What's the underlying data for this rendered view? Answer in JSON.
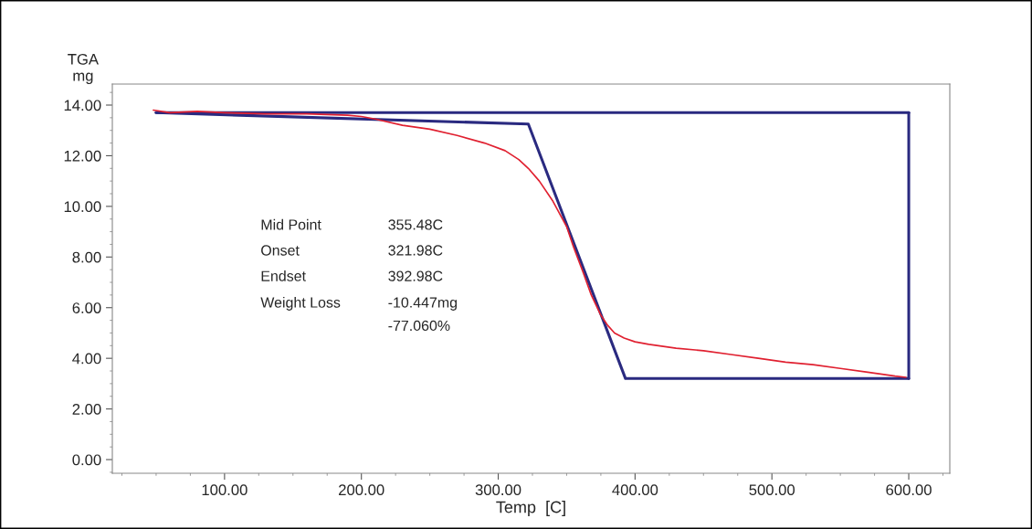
{
  "chart_data": {
    "type": "line",
    "xlabel": "Temp  [C]",
    "ylabel": "TGA\nmg",
    "xlim": [
      18,
      630
    ],
    "ylim": [
      -0.54,
      14.83
    ],
    "xticks": [
      {
        "value": 100,
        "label": "100.00"
      },
      {
        "value": 200,
        "label": "200.00"
      },
      {
        "value": 300,
        "label": "300.00"
      },
      {
        "value": 400,
        "label": "400.00"
      },
      {
        "value": 500,
        "label": "500.00"
      },
      {
        "value": 600,
        "label": "600.00"
      }
    ],
    "yticks": [
      {
        "value": 0,
        "label": "0.00"
      },
      {
        "value": 2,
        "label": "2.00"
      },
      {
        "value": 4,
        "label": "4.00"
      },
      {
        "value": 6,
        "label": "6.00"
      },
      {
        "value": 8,
        "label": "8.00"
      },
      {
        "value": 10,
        "label": "10.00"
      },
      {
        "value": 12,
        "label": "12.00"
      },
      {
        "value": 14,
        "label": "14.00"
      }
    ],
    "grid": false,
    "legend": false,
    "marker": "none",
    "line_style": "solid",
    "series": [
      {
        "color": "#e02030",
        "x": [
          48,
          60,
          80,
          100,
          130,
          160,
          190,
          200,
          210,
          230,
          250,
          270,
          290,
          305,
          315,
          322,
          330,
          340,
          350,
          355,
          362,
          368,
          375,
          380,
          385,
          392,
          400,
          410,
          430,
          450,
          470,
          490,
          510,
          530,
          550,
          570,
          590,
          598
        ],
        "values": [
          13.8,
          13.7,
          13.75,
          13.7,
          13.65,
          13.65,
          13.6,
          13.55,
          13.45,
          13.2,
          13.05,
          12.8,
          12.5,
          12.2,
          11.85,
          11.5,
          11.0,
          10.2,
          9.2,
          8.4,
          7.4,
          6.5,
          5.7,
          5.3,
          5.0,
          4.8,
          4.65,
          4.55,
          4.4,
          4.3,
          4.15,
          4.0,
          3.85,
          3.75,
          3.6,
          3.45,
          3.3,
          3.25
        ]
      },
      {
        "color": "#2a2a80",
        "x": [
          50,
          322,
          393,
          600
        ],
        "values": [
          13.7,
          13.25,
          3.2,
          3.2
        ]
      },
      {
        "color": "#2a2a80",
        "x": [
          50,
          600
        ],
        "values": [
          13.7,
          13.7
        ]
      },
      {
        "color": "#2a2a80",
        "x": [
          600,
          600
        ],
        "values": [
          3.2,
          13.7
        ]
      }
    ],
    "annotations": [
      "Mid Point",
      "355.48C",
      "Onset",
      "321.98C",
      "Endset",
      "392.98C",
      "Weight Loss",
      "-10.447mg\n-77.060%"
    ]
  }
}
